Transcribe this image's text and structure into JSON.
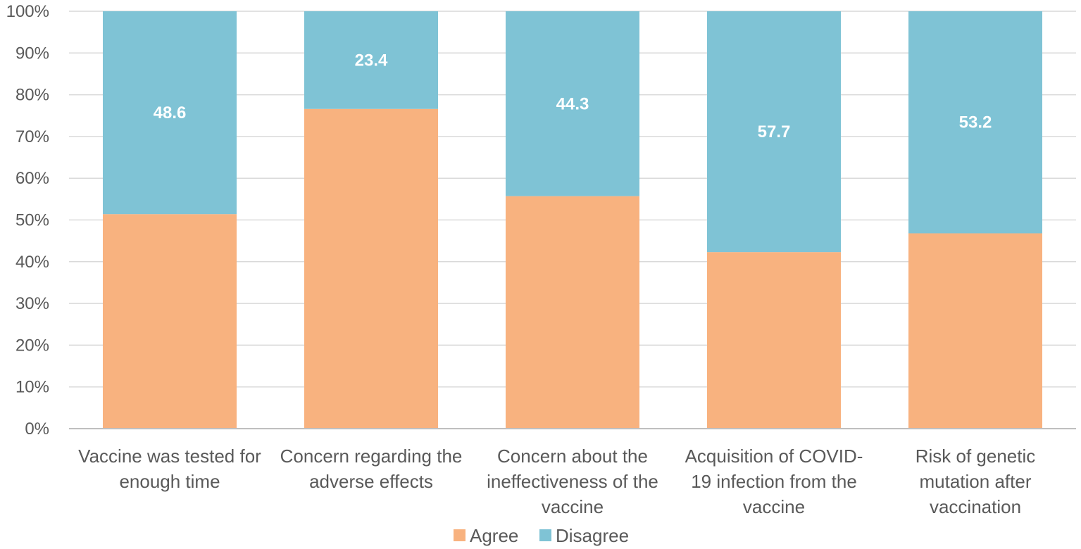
{
  "chart_data": {
    "type": "bar",
    "stacked": true,
    "orientation": "vertical",
    "categories": [
      [
        "Vaccine was tested for",
        "enough time"
      ],
      [
        "Concern regarding the",
        "adverse effects"
      ],
      [
        "Concern about the",
        "ineffectiveness of the",
        "vaccine"
      ],
      [
        "Acquisition of COVID-",
        "19 infection from the",
        "vaccine"
      ],
      [
        "Risk of genetic",
        "mutation after",
        "vaccination"
      ]
    ],
    "series": [
      {
        "name": "Agree",
        "color": "#F8B27F",
        "values": [
          51.4,
          76.6,
          55.7,
          42.3,
          46.8
        ],
        "labels_shown": false
      },
      {
        "name": "Disagree",
        "color": "#7FC3D5",
        "values": [
          48.6,
          23.4,
          44.3,
          57.7,
          53.2
        ],
        "labels_shown": true
      }
    ],
    "data_labels": [
      "48.6",
      "23.4",
      "44.3",
      "57.7",
      "53.2"
    ],
    "ylim": [
      0,
      100
    ],
    "y_ticks": [
      "0%",
      "10%",
      "20%",
      "30%",
      "40%",
      "50%",
      "60%",
      "70%",
      "80%",
      "90%",
      "100%"
    ],
    "y_tick_values": [
      0,
      10,
      20,
      30,
      40,
      50,
      60,
      70,
      80,
      90,
      100
    ],
    "grid": true,
    "legend_position": "bottom",
    "title": "",
    "xlabel": "",
    "ylabel": ""
  }
}
